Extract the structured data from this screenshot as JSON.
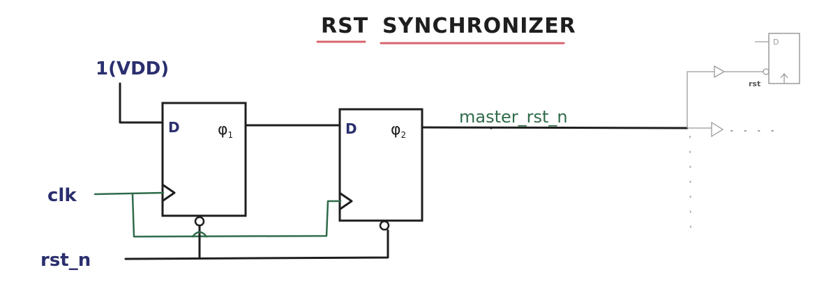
{
  "colors": {
    "ink": "#1e1e1e",
    "navy": "#2b2f6e",
    "green": "#2f6b4a",
    "underline": "#d9646f",
    "faint": "#9a9a9a"
  },
  "title": {
    "word1": "RST",
    "word2": "SYNCHRONIZER"
  },
  "inputs": {
    "vdd": "1(VDD)",
    "clk": "clk",
    "rst": "rst_n"
  },
  "ff1": {
    "d": "D",
    "q": "φ",
    "q_sub": "1"
  },
  "ff2": {
    "d": "D",
    "q": "φ",
    "q_sub": "2"
  },
  "output": {
    "net": "master_rst_n"
  },
  "downstream": {
    "d": "D",
    "rst": "rst"
  }
}
